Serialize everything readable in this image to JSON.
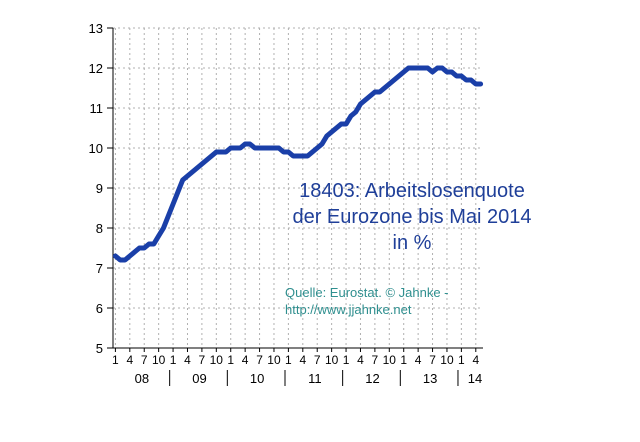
{
  "chart_data": {
    "type": "line",
    "title_lines": [
      "18403: Arbeitslosenquote",
      "der Eurozone bis Mai 2014",
      "in %"
    ],
    "source_lines": [
      "Quelle: Eurostat. © Jahnke -",
      "http://www.jjahnke.net"
    ],
    "ylim": [
      5,
      13
    ],
    "yticks": [
      5,
      6,
      7,
      8,
      9,
      10,
      11,
      12,
      13
    ],
    "month_tick_labels": [
      "1",
      "4",
      "7",
      "10",
      "1",
      "4",
      "7",
      "10",
      "1",
      "4",
      "7",
      "10",
      "1",
      "4",
      "7",
      "10",
      "1",
      "4",
      "7",
      "10",
      "1",
      "4",
      "7",
      "10",
      "1",
      "4"
    ],
    "year_labels": [
      "08",
      "09",
      "10",
      "11",
      "12",
      "13",
      "14"
    ],
    "grid": true,
    "series": [
      {
        "color": "#1a3fa8",
        "values": [
          7.3,
          7.2,
          7.2,
          7.3,
          7.4,
          7.5,
          7.5,
          7.6,
          7.6,
          7.8,
          8.0,
          8.3,
          8.6,
          8.9,
          9.2,
          9.3,
          9.4,
          9.5,
          9.6,
          9.7,
          9.8,
          9.9,
          9.9,
          9.9,
          10.0,
          10.0,
          10.0,
          10.1,
          10.1,
          10.0,
          10.0,
          10.0,
          10.0,
          10.0,
          10.0,
          9.9,
          9.9,
          9.8,
          9.8,
          9.8,
          9.8,
          9.9,
          10.0,
          10.1,
          10.3,
          10.4,
          10.5,
          10.6,
          10.6,
          10.8,
          10.9,
          11.1,
          11.2,
          11.3,
          11.4,
          11.4,
          11.5,
          11.6,
          11.7,
          11.8,
          11.9,
          12.0,
          12.0,
          12.0,
          12.0,
          12.0,
          11.9,
          12.0,
          12.0,
          11.9,
          11.9,
          11.8,
          11.8,
          11.7,
          11.7,
          11.6,
          11.6
        ]
      }
    ]
  }
}
